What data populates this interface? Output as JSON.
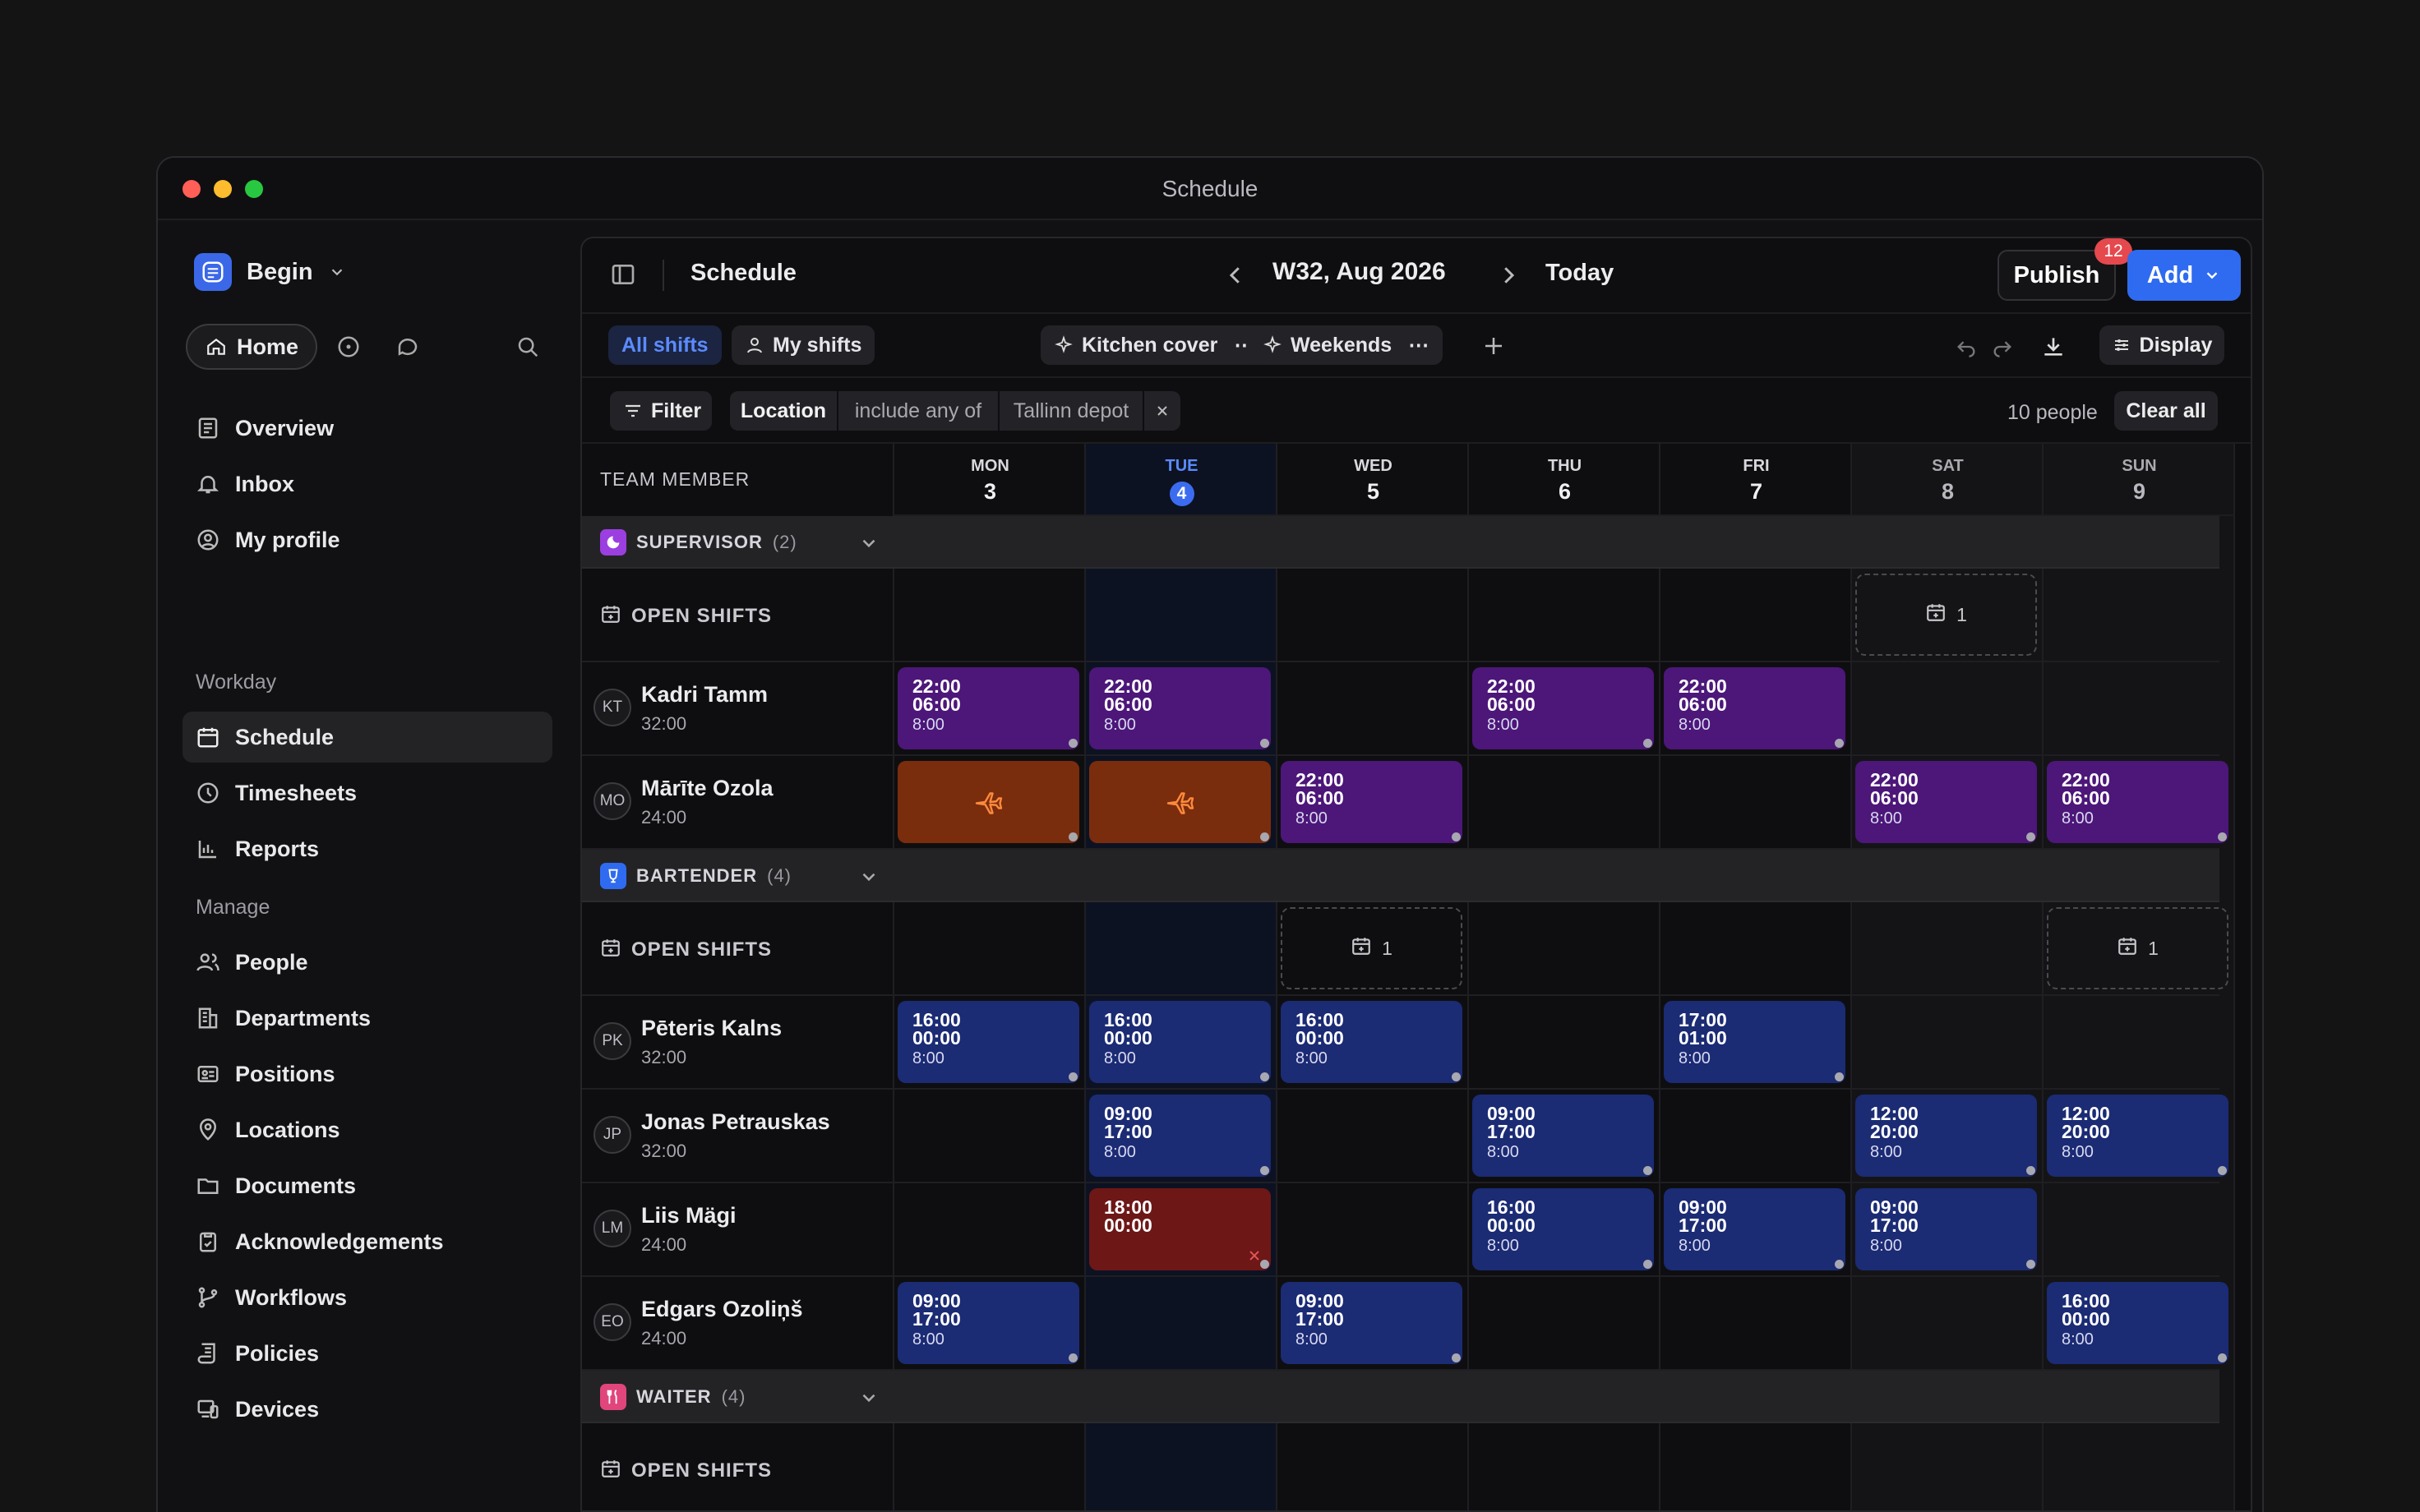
{
  "window": {
    "title": "Schedule"
  },
  "sidebar": {
    "workspace": "Begin",
    "home_label": "Home",
    "top_items": [
      {
        "label": "Overview",
        "icon": "overview-icon"
      },
      {
        "label": "Inbox",
        "icon": "bell-icon"
      },
      {
        "label": "My profile",
        "icon": "profile-icon"
      }
    ],
    "workday_label": "Workday",
    "workday_items": [
      {
        "label": "Schedule",
        "icon": "calendar-icon",
        "active": true
      },
      {
        "label": "Timesheets",
        "icon": "clock-icon"
      },
      {
        "label": "Reports",
        "icon": "chart-icon"
      }
    ],
    "manage_label": "Manage",
    "manage_items": [
      {
        "label": "People",
        "icon": "people-icon"
      },
      {
        "label": "Departments",
        "icon": "building-icon"
      },
      {
        "label": "Positions",
        "icon": "id-card-icon"
      },
      {
        "label": "Locations",
        "icon": "pin-icon"
      },
      {
        "label": "Documents",
        "icon": "folder-icon"
      },
      {
        "label": "Acknowledgements",
        "icon": "clipboard-icon"
      },
      {
        "label": "Workflows",
        "icon": "branch-icon"
      },
      {
        "label": "Policies",
        "icon": "scroll-icon"
      },
      {
        "label": "Devices",
        "icon": "devices-icon"
      }
    ]
  },
  "header": {
    "title": "Schedule",
    "week": "W32, Aug 2026",
    "today": "Today",
    "publish": "Publish",
    "publish_badge": "12",
    "add": "Add"
  },
  "views": [
    {
      "label": "All shifts",
      "selected": true
    },
    {
      "label": "My shifts"
    },
    {
      "label": "Kitchen cover"
    },
    {
      "label": "Weekends"
    }
  ],
  "display_label": "Display",
  "filter": {
    "button": "Filter",
    "field": "Location",
    "operator": "include any of",
    "value": "Tallinn depot",
    "people_count": "10 people",
    "clear": "Clear all"
  },
  "grid": {
    "member_header": "TEAM MEMBER",
    "open_shifts_label": "OPEN SHIFTS",
    "days": [
      {
        "name": "MON",
        "date": "3"
      },
      {
        "name": "TUE",
        "date": "4",
        "today": true
      },
      {
        "name": "WED",
        "date": "5"
      },
      {
        "name": "THU",
        "date": "6"
      },
      {
        "name": "FRI",
        "date": "7"
      },
      {
        "name": "SAT",
        "date": "8",
        "weekend": true
      },
      {
        "name": "SUN",
        "date": "9",
        "weekend": true
      }
    ],
    "groups": [
      {
        "name": "SUPERVISOR",
        "count": "(2)",
        "color": "#9b3fe0",
        "open_shifts": [
          {
            "day": 5,
            "count": "1"
          }
        ],
        "members": [
          {
            "initials": "KT",
            "name": "Kadri Tamm",
            "hours": "32:00",
            "shifts": [
              {
                "day": 0,
                "start": "22:00",
                "end": "06:00",
                "dur": "8:00",
                "kind": "night"
              },
              {
                "day": 1,
                "start": "22:00",
                "end": "06:00",
                "dur": "8:00",
                "kind": "night"
              },
              {
                "day": 3,
                "start": "22:00",
                "end": "06:00",
                "dur": "8:00",
                "kind": "night"
              },
              {
                "day": 4,
                "start": "22:00",
                "end": "06:00",
                "dur": "8:00",
                "kind": "night"
              }
            ]
          },
          {
            "initials": "MO",
            "name": "Mārīte Ozola",
            "hours": "24:00",
            "shifts": [
              {
                "day": 0,
                "kind": "leave"
              },
              {
                "day": 1,
                "kind": "leave"
              },
              {
                "day": 2,
                "start": "22:00",
                "end": "06:00",
                "dur": "8:00",
                "kind": "night"
              },
              {
                "day": 5,
                "start": "22:00",
                "end": "06:00",
                "dur": "8:00",
                "kind": "night"
              },
              {
                "day": 6,
                "start": "22:00",
                "end": "06:00",
                "dur": "8:00",
                "kind": "night"
              }
            ]
          }
        ]
      },
      {
        "name": "BARTENDER",
        "count": "(4)",
        "color": "#2f6bf0",
        "open_shifts": [
          {
            "day": 2,
            "count": "1"
          },
          {
            "day": 6,
            "count": "1"
          }
        ],
        "members": [
          {
            "initials": "PK",
            "name": "Pēteris Kalns",
            "hours": "32:00",
            "shifts": [
              {
                "day": 0,
                "start": "16:00",
                "end": "00:00",
                "dur": "8:00",
                "kind": "day"
              },
              {
                "day": 1,
                "start": "16:00",
                "end": "00:00",
                "dur": "8:00",
                "kind": "day"
              },
              {
                "day": 2,
                "start": "16:00",
                "end": "00:00",
                "dur": "8:00",
                "kind": "day"
              },
              {
                "day": 4,
                "start": "17:00",
                "end": "01:00",
                "dur": "8:00",
                "kind": "day"
              }
            ]
          },
          {
            "initials": "JP",
            "name": "Jonas Petrauskas",
            "hours": "32:00",
            "shifts": [
              {
                "day": 1,
                "start": "09:00",
                "end": "17:00",
                "dur": "8:00",
                "kind": "day"
              },
              {
                "day": 3,
                "start": "09:00",
                "end": "17:00",
                "dur": "8:00",
                "kind": "day"
              },
              {
                "day": 5,
                "start": "12:00",
                "end": "20:00",
                "dur": "8:00",
                "kind": "day"
              },
              {
                "day": 6,
                "start": "12:00",
                "end": "20:00",
                "dur": "8:00",
                "kind": "day"
              }
            ]
          },
          {
            "initials": "LM",
            "name": "Liis Mägi",
            "hours": "24:00",
            "shifts": [
              {
                "day": 1,
                "start": "18:00",
                "end": "00:00",
                "dur": "",
                "kind": "cancel"
              },
              {
                "day": 3,
                "start": "16:00",
                "end": "00:00",
                "dur": "8:00",
                "kind": "day"
              },
              {
                "day": 4,
                "start": "09:00",
                "end": "17:00",
                "dur": "8:00",
                "kind": "day"
              },
              {
                "day": 5,
                "start": "09:00",
                "end": "17:00",
                "dur": "8:00",
                "kind": "day"
              }
            ]
          },
          {
            "initials": "EO",
            "name": "Edgars Ozoliņš",
            "hours": "24:00",
            "shifts": [
              {
                "day": 0,
                "start": "09:00",
                "end": "17:00",
                "dur": "8:00",
                "kind": "day"
              },
              {
                "day": 2,
                "start": "09:00",
                "end": "17:00",
                "dur": "8:00",
                "kind": "day"
              },
              {
                "day": 6,
                "start": "16:00",
                "end": "00:00",
                "dur": "8:00",
                "kind": "day"
              }
            ]
          }
        ]
      },
      {
        "name": "WAITER",
        "count": "(4)",
        "color": "#e0457b",
        "open_shifts": [],
        "members": []
      }
    ]
  }
}
